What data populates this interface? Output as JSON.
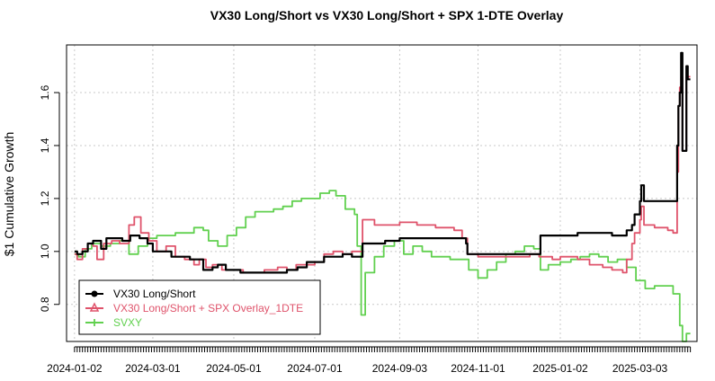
{
  "chart_data": {
    "type": "line",
    "title": "VX30 Long/Short vs VX30 Long/Short + SPX 1-DTE Overlay",
    "ylabel": "$1 Cumulative Growth",
    "xlabel": "",
    "x_ticks": [
      "2024-01-02",
      "2024-03-01",
      "2024-05-01",
      "2024-07-01",
      "2024-09-03",
      "2024-11-01",
      "2025-01-02",
      "2025-03-03"
    ],
    "y_ticks": [
      0.8,
      1.0,
      1.2,
      1.4,
      1.6
    ],
    "ylim": [
      0.66,
      1.78
    ],
    "xlim": [
      "2023-12-27",
      "2025-04-15"
    ],
    "grid": true,
    "legend_position": "bottom-left",
    "series": [
      {
        "name": "VX30 Long/Short",
        "color": "#000000",
        "marker": "circle",
        "points": [
          [
            "2024-01-02",
            1.0
          ],
          [
            "2024-01-04",
            0.99
          ],
          [
            "2024-01-08",
            1.0
          ],
          [
            "2024-01-12",
            1.03
          ],
          [
            "2024-01-16",
            1.04
          ],
          [
            "2024-01-22",
            1.01
          ],
          [
            "2024-01-26",
            1.05
          ],
          [
            "2024-02-01",
            1.05
          ],
          [
            "2024-02-07",
            1.04
          ],
          [
            "2024-02-13",
            1.06
          ],
          [
            "2024-02-20",
            1.05
          ],
          [
            "2024-02-26",
            1.03
          ],
          [
            "2024-03-01",
            1.0
          ],
          [
            "2024-03-08",
            1.0
          ],
          [
            "2024-03-15",
            0.98
          ],
          [
            "2024-03-22",
            0.98
          ],
          [
            "2024-03-29",
            0.97
          ],
          [
            "2024-04-03",
            0.97
          ],
          [
            "2024-04-08",
            0.93
          ],
          [
            "2024-04-15",
            0.94
          ],
          [
            "2024-04-19",
            0.95
          ],
          [
            "2024-04-25",
            0.93
          ],
          [
            "2024-05-01",
            0.93
          ],
          [
            "2024-05-06",
            0.92
          ],
          [
            "2024-05-15",
            0.92
          ],
          [
            "2024-05-24",
            0.92
          ],
          [
            "2024-06-03",
            0.92
          ],
          [
            "2024-06-10",
            0.93
          ],
          [
            "2024-06-18",
            0.94
          ],
          [
            "2024-06-25",
            0.96
          ],
          [
            "2024-07-01",
            0.96
          ],
          [
            "2024-07-08",
            0.98
          ],
          [
            "2024-07-15",
            0.98
          ],
          [
            "2024-07-22",
            0.99
          ],
          [
            "2024-07-29",
            0.98
          ],
          [
            "2024-08-05",
            0.98
          ],
          [
            "2024-08-06",
            1.03
          ],
          [
            "2024-08-15",
            1.03
          ],
          [
            "2024-08-23",
            1.04
          ],
          [
            "2024-09-03",
            1.05
          ],
          [
            "2024-09-16",
            1.05
          ],
          [
            "2024-09-30",
            1.05
          ],
          [
            "2024-10-14",
            1.05
          ],
          [
            "2024-10-23",
            1.03
          ],
          [
            "2024-10-24",
            0.99
          ],
          [
            "2024-11-01",
            0.99
          ],
          [
            "2024-11-15",
            0.99
          ],
          [
            "2024-11-29",
            0.99
          ],
          [
            "2024-12-10",
            0.99
          ],
          [
            "2024-12-17",
            0.99
          ],
          [
            "2024-12-18",
            1.06
          ],
          [
            "2024-12-27",
            1.06
          ],
          [
            "2025-01-02",
            1.06
          ],
          [
            "2025-01-10",
            1.06
          ],
          [
            "2025-01-14",
            1.06
          ],
          [
            "2025-01-15",
            1.07
          ],
          [
            "2025-01-24",
            1.07
          ],
          [
            "2025-02-03",
            1.07
          ],
          [
            "2025-02-10",
            1.06
          ],
          [
            "2025-02-18",
            1.06
          ],
          [
            "2025-02-21",
            1.08
          ],
          [
            "2025-02-25",
            1.1
          ],
          [
            "2025-02-27",
            1.14
          ],
          [
            "2025-03-03",
            1.19
          ],
          [
            "2025-03-04",
            1.25
          ],
          [
            "2025-03-06",
            1.19
          ],
          [
            "2025-03-14",
            1.19
          ],
          [
            "2025-03-24",
            1.19
          ],
          [
            "2025-03-28",
            1.19
          ],
          [
            "2025-03-31",
            1.4
          ],
          [
            "2025-04-01",
            1.55
          ],
          [
            "2025-04-02",
            1.6
          ],
          [
            "2025-04-03",
            1.75
          ],
          [
            "2025-04-04",
            1.38
          ],
          [
            "2025-04-07",
            1.7
          ],
          [
            "2025-04-08",
            1.65
          ],
          [
            "2025-04-10",
            1.65
          ]
        ]
      },
      {
        "name": "VX30 Long/Short + SPX Overlay_1DTE",
        "color": "#DF536B",
        "marker": "triangle",
        "points": [
          [
            "2024-01-02",
            0.99
          ],
          [
            "2024-01-04",
            0.97
          ],
          [
            "2024-01-08",
            1.01
          ],
          [
            "2024-01-12",
            1.03
          ],
          [
            "2024-01-16",
            1.02
          ],
          [
            "2024-01-19",
            0.97
          ],
          [
            "2024-01-24",
            1.03
          ],
          [
            "2024-01-30",
            1.04
          ],
          [
            "2024-02-05",
            1.03
          ],
          [
            "2024-02-12",
            1.1
          ],
          [
            "2024-02-16",
            1.13
          ],
          [
            "2024-02-21",
            1.07
          ],
          [
            "2024-02-27",
            1.04
          ],
          [
            "2024-03-04",
            1.0
          ],
          [
            "2024-03-11",
            1.02
          ],
          [
            "2024-03-18",
            0.98
          ],
          [
            "2024-03-25",
            0.97
          ],
          [
            "2024-04-01",
            0.95
          ],
          [
            "2024-04-05",
            0.97
          ],
          [
            "2024-04-10",
            0.94
          ],
          [
            "2024-04-15",
            0.95
          ],
          [
            "2024-04-22",
            0.93
          ],
          [
            "2024-05-01",
            0.93
          ],
          [
            "2024-05-08",
            0.92
          ],
          [
            "2024-05-15",
            0.92
          ],
          [
            "2024-05-24",
            0.93
          ],
          [
            "2024-06-03",
            0.94
          ],
          [
            "2024-06-10",
            0.93
          ],
          [
            "2024-06-17",
            0.95
          ],
          [
            "2024-06-24",
            0.95
          ],
          [
            "2024-07-01",
            0.96
          ],
          [
            "2024-07-08",
            0.99
          ],
          [
            "2024-07-15",
            1.0
          ],
          [
            "2024-07-22",
            0.99
          ],
          [
            "2024-07-29",
            1.0
          ],
          [
            "2024-08-05",
            1.0
          ],
          [
            "2024-08-06",
            1.12
          ],
          [
            "2024-08-15",
            1.1
          ],
          [
            "2024-08-23",
            1.1
          ],
          [
            "2024-09-03",
            1.11
          ],
          [
            "2024-09-16",
            1.1
          ],
          [
            "2024-09-30",
            1.09
          ],
          [
            "2024-10-14",
            1.08
          ],
          [
            "2024-10-20",
            1.05
          ],
          [
            "2024-10-24",
            0.99
          ],
          [
            "2024-11-01",
            0.98
          ],
          [
            "2024-11-15",
            0.98
          ],
          [
            "2024-11-29",
            0.98
          ],
          [
            "2024-12-10",
            0.99
          ],
          [
            "2024-12-17",
            0.98
          ],
          [
            "2024-12-18",
            0.98
          ],
          [
            "2024-12-27",
            0.97
          ],
          [
            "2025-01-02",
            0.98
          ],
          [
            "2025-01-10",
            0.98
          ],
          [
            "2025-01-15",
            0.97
          ],
          [
            "2025-01-24",
            0.95
          ],
          [
            "2025-02-03",
            0.94
          ],
          [
            "2025-02-10",
            0.93
          ],
          [
            "2025-02-18",
            0.92
          ],
          [
            "2025-02-21",
            0.97
          ],
          [
            "2025-02-25",
            1.03
          ],
          [
            "2025-02-27",
            1.07
          ],
          [
            "2025-03-03",
            1.12
          ],
          [
            "2025-03-04",
            1.17
          ],
          [
            "2025-03-06",
            1.1
          ],
          [
            "2025-03-14",
            1.09
          ],
          [
            "2025-03-24",
            1.08
          ],
          [
            "2025-03-28",
            1.07
          ],
          [
            "2025-03-31",
            1.3
          ],
          [
            "2025-04-01",
            1.55
          ],
          [
            "2025-04-02",
            1.62
          ],
          [
            "2025-04-03",
            1.66
          ],
          [
            "2025-04-04",
            1.38
          ],
          [
            "2025-04-07",
            1.66
          ],
          [
            "2025-04-10",
            1.66
          ]
        ]
      },
      {
        "name": "SVXY",
        "color": "#61D04F",
        "marker": "plus",
        "points": [
          [
            "2024-01-02",
            0.99
          ],
          [
            "2024-01-05",
            0.98
          ],
          [
            "2024-01-10",
            1.01
          ],
          [
            "2024-01-15",
            1.03
          ],
          [
            "2024-01-22",
            1.02
          ],
          [
            "2024-01-29",
            1.03
          ],
          [
            "2024-02-05",
            1.04
          ],
          [
            "2024-02-12",
            0.99
          ],
          [
            "2024-02-19",
            1.02
          ],
          [
            "2024-02-26",
            1.05
          ],
          [
            "2024-03-04",
            1.06
          ],
          [
            "2024-03-11",
            1.06
          ],
          [
            "2024-03-18",
            1.07
          ],
          [
            "2024-03-25",
            1.07
          ],
          [
            "2024-04-01",
            1.09
          ],
          [
            "2024-04-08",
            1.08
          ],
          [
            "2024-04-12",
            1.04
          ],
          [
            "2024-04-19",
            1.02
          ],
          [
            "2024-04-26",
            1.06
          ],
          [
            "2024-05-03",
            1.09
          ],
          [
            "2024-05-10",
            1.13
          ],
          [
            "2024-05-17",
            1.15
          ],
          [
            "2024-05-24",
            1.15
          ],
          [
            "2024-05-31",
            1.16
          ],
          [
            "2024-06-07",
            1.17
          ],
          [
            "2024-06-14",
            1.19
          ],
          [
            "2024-06-21",
            1.2
          ],
          [
            "2024-06-28",
            1.2
          ],
          [
            "2024-07-05",
            1.22
          ],
          [
            "2024-07-12",
            1.23
          ],
          [
            "2024-07-17",
            1.21
          ],
          [
            "2024-07-24",
            1.16
          ],
          [
            "2024-07-31",
            1.14
          ],
          [
            "2024-08-02",
            1.02
          ],
          [
            "2024-08-05",
            0.76
          ],
          [
            "2024-08-08",
            0.92
          ],
          [
            "2024-08-15",
            0.98
          ],
          [
            "2024-08-22",
            1.02
          ],
          [
            "2024-08-30",
            1.04
          ],
          [
            "2024-09-06",
            0.99
          ],
          [
            "2024-09-13",
            1.02
          ],
          [
            "2024-09-20",
            1.0
          ],
          [
            "2024-09-27",
            0.98
          ],
          [
            "2024-10-04",
            0.98
          ],
          [
            "2024-10-11",
            0.97
          ],
          [
            "2024-10-18",
            0.97
          ],
          [
            "2024-10-25",
            0.93
          ],
          [
            "2024-11-01",
            0.9
          ],
          [
            "2024-11-08",
            0.93
          ],
          [
            "2024-11-15",
            0.96
          ],
          [
            "2024-11-22",
            0.99
          ],
          [
            "2024-11-29",
            1.0
          ],
          [
            "2024-12-06",
            1.02
          ],
          [
            "2024-12-13",
            1.01
          ],
          [
            "2024-12-18",
            0.93
          ],
          [
            "2024-12-24",
            0.95
          ],
          [
            "2025-01-02",
            0.96
          ],
          [
            "2025-01-10",
            0.97
          ],
          [
            "2025-01-17",
            0.98
          ],
          [
            "2025-01-24",
            0.99
          ],
          [
            "2025-01-31",
            0.98
          ],
          [
            "2025-02-07",
            0.96
          ],
          [
            "2025-02-14",
            0.97
          ],
          [
            "2025-02-21",
            0.94
          ],
          [
            "2025-02-28",
            0.89
          ],
          [
            "2025-03-07",
            0.86
          ],
          [
            "2025-03-14",
            0.87
          ],
          [
            "2025-03-21",
            0.87
          ],
          [
            "2025-03-28",
            0.84
          ],
          [
            "2025-04-02",
            0.72
          ],
          [
            "2025-04-04",
            0.66
          ],
          [
            "2025-04-07",
            0.69
          ],
          [
            "2025-04-10",
            0.69
          ]
        ]
      }
    ]
  }
}
